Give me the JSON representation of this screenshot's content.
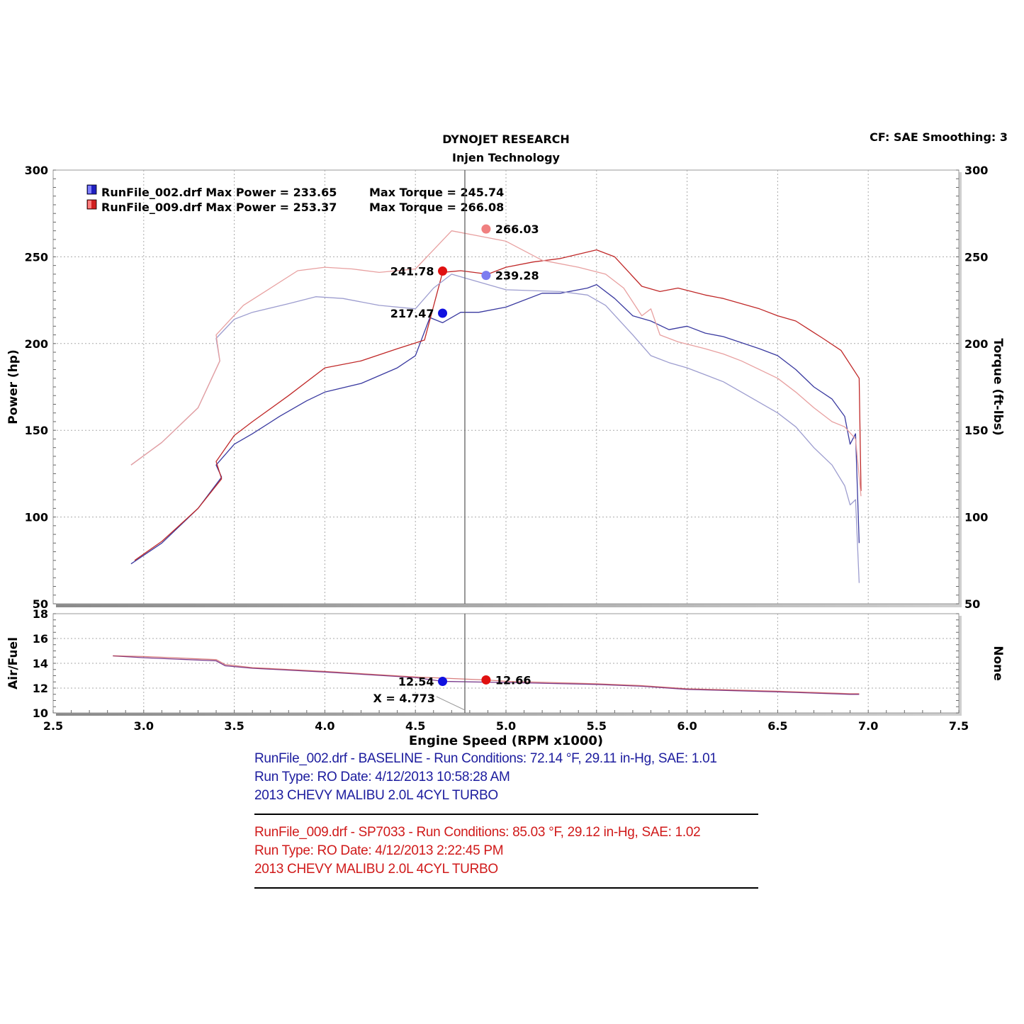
{
  "header": {
    "title": "DYNOJET RESEARCH",
    "subtitle": "Injen Technology",
    "settings": "CF: SAE  Smoothing: 3"
  },
  "colors": {
    "baseline_power": "#3a3aa0",
    "baseline_torque": "#9d9dcf",
    "baseline_marker": "#1010e0",
    "baseline_torque_marker": "#7d7df0",
    "sp7033_power": "#c02828",
    "sp7033_torque": "#e8a0a0",
    "sp7033_marker": "#e01010",
    "sp7033_torque_marker": "#f08080",
    "af_line": "#7a3a8c",
    "cursor": "#555555",
    "grid": "#aaaaaa"
  },
  "legend": [
    {
      "label": "RunFile_002.drf Max Power = 233.65",
      "torque": "Max Torque = 245.74",
      "color": "#2020c0"
    },
    {
      "label": "RunFile_009.drf Max Power = 253.37",
      "torque": "Max Torque = 266.08",
      "color": "#d02020"
    }
  ],
  "chart_data": [
    {
      "type": "line",
      "x_label": "Engine Speed (RPM x1000)",
      "y_label_left": "Power (hp)",
      "y_label_right": "Torque (ft-lbs)",
      "xlim": [
        2.5,
        7.5
      ],
      "ylim": [
        50,
        300
      ],
      "x_ticks": [
        "2.5",
        "3.0",
        "3.5",
        "4.0",
        "4.5",
        "5.0",
        "5.5",
        "6.0",
        "6.5",
        "7.0",
        "7.5"
      ],
      "y_ticks": [
        "50",
        "100",
        "150",
        "200",
        "250",
        "300"
      ],
      "grid": true,
      "cursor_x": 4.773,
      "series": [
        {
          "name": "RunFile_002.drf Power",
          "kind": "power",
          "run": "baseline",
          "points": [
            [
              2.93,
              73
            ],
            [
              3.1,
              85
            ],
            [
              3.3,
              105
            ],
            [
              3.43,
              123
            ],
            [
              3.4,
              130
            ],
            [
              3.5,
              142
            ],
            [
              3.6,
              148
            ],
            [
              3.75,
              158
            ],
            [
              3.9,
              167
            ],
            [
              4.0,
              172
            ],
            [
              4.2,
              177
            ],
            [
              4.4,
              186
            ],
            [
              4.5,
              193
            ],
            [
              4.58,
              215
            ],
            [
              4.65,
              212
            ],
            [
              4.75,
              218
            ],
            [
              4.85,
              218
            ],
            [
              5.0,
              221
            ],
            [
              5.2,
              229
            ],
            [
              5.3,
              229
            ],
            [
              5.45,
              232
            ],
            [
              5.5,
              234
            ],
            [
              5.6,
              226
            ],
            [
              5.7,
              216
            ],
            [
              5.8,
              213
            ],
            [
              5.9,
              208
            ],
            [
              6.0,
              210
            ],
            [
              6.1,
              206
            ],
            [
              6.2,
              204
            ],
            [
              6.4,
              197
            ],
            [
              6.5,
              193
            ],
            [
              6.6,
              185
            ],
            [
              6.7,
              175
            ],
            [
              6.8,
              168
            ],
            [
              6.87,
              158
            ],
            [
              6.9,
              142
            ],
            [
              6.93,
              148
            ],
            [
              6.95,
              85
            ]
          ]
        },
        {
          "name": "RunFile_009.drf Power",
          "kind": "power",
          "run": "sp7033",
          "points": [
            [
              2.95,
              75
            ],
            [
              3.1,
              86
            ],
            [
              3.3,
              105
            ],
            [
              3.43,
              122
            ],
            [
              3.4,
              132
            ],
            [
              3.5,
              147
            ],
            [
              3.6,
              155
            ],
            [
              3.8,
              170
            ],
            [
              4.0,
              186
            ],
            [
              4.2,
              190
            ],
            [
              4.4,
              197
            ],
            [
              4.55,
              202
            ],
            [
              4.65,
              241
            ],
            [
              4.75,
              242
            ],
            [
              4.9,
              240
            ],
            [
              5.0,
              244
            ],
            [
              5.15,
              247
            ],
            [
              5.3,
              249
            ],
            [
              5.5,
              254
            ],
            [
              5.6,
              250
            ],
            [
              5.75,
              233
            ],
            [
              5.85,
              230
            ],
            [
              5.95,
              232
            ],
            [
              6.1,
              228
            ],
            [
              6.2,
              226
            ],
            [
              6.4,
              220
            ],
            [
              6.5,
              216
            ],
            [
              6.6,
              213
            ],
            [
              6.75,
              203
            ],
            [
              6.85,
              196
            ],
            [
              6.95,
              180
            ],
            [
              6.96,
              115
            ]
          ]
        },
        {
          "name": "RunFile_002.drf Torque",
          "kind": "torque",
          "run": "baseline",
          "points": [
            [
              2.93,
              130
            ],
            [
              3.1,
              143
            ],
            [
              3.3,
              163
            ],
            [
              3.42,
              190
            ],
            [
              3.4,
              203
            ],
            [
              3.5,
              214
            ],
            [
              3.6,
              218
            ],
            [
              3.8,
              223
            ],
            [
              3.95,
              227
            ],
            [
              4.1,
              226
            ],
            [
              4.3,
              222
            ],
            [
              4.5,
              220
            ],
            [
              4.6,
              232
            ],
            [
              4.7,
              240
            ],
            [
              4.8,
              237
            ],
            [
              5.0,
              231
            ],
            [
              5.3,
              230
            ],
            [
              5.45,
              228
            ],
            [
              5.55,
              222
            ],
            [
              5.7,
              205
            ],
            [
              5.8,
              193
            ],
            [
              5.9,
              189
            ],
            [
              6.0,
              186
            ],
            [
              6.1,
              182
            ],
            [
              6.2,
              178
            ],
            [
              6.3,
              172
            ],
            [
              6.5,
              160
            ],
            [
              6.6,
              152
            ],
            [
              6.7,
              140
            ],
            [
              6.8,
              130
            ],
            [
              6.87,
              118
            ],
            [
              6.9,
              107
            ],
            [
              6.93,
              110
            ],
            [
              6.95,
              62
            ]
          ]
        },
        {
          "name": "RunFile_009.drf Torque",
          "kind": "torque",
          "run": "sp7033",
          "points": [
            [
              2.93,
              130
            ],
            [
              3.1,
              143
            ],
            [
              3.3,
              163
            ],
            [
              3.42,
              190
            ],
            [
              3.4,
              205
            ],
            [
              3.55,
              222
            ],
            [
              3.7,
              232
            ],
            [
              3.85,
              242
            ],
            [
              4.0,
              244
            ],
            [
              4.15,
              243
            ],
            [
              4.3,
              241
            ],
            [
              4.5,
              243
            ],
            [
              4.6,
              254
            ],
            [
              4.7,
              265
            ],
            [
              4.85,
              262
            ],
            [
              5.0,
              259
            ],
            [
              5.2,
              248
            ],
            [
              5.4,
              244
            ],
            [
              5.55,
              240
            ],
            [
              5.65,
              232
            ],
            [
              5.75,
              216
            ],
            [
              5.8,
              220
            ],
            [
              5.85,
              205
            ],
            [
              5.95,
              201
            ],
            [
              6.1,
              197
            ],
            [
              6.2,
              194
            ],
            [
              6.3,
              190
            ],
            [
              6.5,
              180
            ],
            [
              6.6,
              172
            ],
            [
              6.7,
              163
            ],
            [
              6.8,
              155
            ],
            [
              6.87,
              152
            ],
            [
              6.93,
              145
            ],
            [
              6.96,
              112
            ]
          ]
        }
      ],
      "markers": [
        {
          "x": 4.65,
          "y": 217.47,
          "label": "217.47",
          "run": "baseline",
          "kind": "power",
          "label_side": "left"
        },
        {
          "x": 4.65,
          "y": 241.78,
          "label": "241.78",
          "run": "sp7033",
          "kind": "power",
          "label_side": "left"
        },
        {
          "x": 4.89,
          "y": 239.28,
          "label": "239.28",
          "run": "baseline",
          "kind": "torque",
          "label_side": "right"
        },
        {
          "x": 4.89,
          "y": 266.03,
          "label": "266.03",
          "run": "sp7033",
          "kind": "torque",
          "label_side": "right"
        }
      ]
    },
    {
      "type": "line",
      "y_label_left": "Air/Fuel",
      "y_label_right": "None",
      "xlim": [
        2.5,
        7.5
      ],
      "ylim": [
        10,
        18
      ],
      "y_ticks": [
        "10",
        "12",
        "14",
        "16",
        "18"
      ],
      "grid": true,
      "cursor_label": "X = 4.773",
      "series": [
        {
          "name": "RunFile_002.drf Air/Fuel",
          "run": "baseline",
          "points": [
            [
              2.83,
              14.6
            ],
            [
              3.0,
              14.45
            ],
            [
              3.4,
              14.2
            ],
            [
              3.45,
              13.8
            ],
            [
              3.6,
              13.6
            ],
            [
              4.0,
              13.3
            ],
            [
              4.5,
              12.85
            ],
            [
              4.65,
              12.54
            ],
            [
              5.0,
              12.45
            ],
            [
              5.5,
              12.3
            ],
            [
              5.75,
              12.15
            ],
            [
              6.0,
              11.9
            ],
            [
              6.5,
              11.7
            ],
            [
              6.9,
              11.5
            ],
            [
              6.95,
              11.5
            ]
          ]
        },
        {
          "name": "RunFile_009.drf Air/Fuel",
          "run": "sp7033",
          "points": [
            [
              2.83,
              14.6
            ],
            [
              3.0,
              14.55
            ],
            [
              3.4,
              14.3
            ],
            [
              3.45,
              13.9
            ],
            [
              3.6,
              13.65
            ],
            [
              4.0,
              13.35
            ],
            [
              4.5,
              12.9
            ],
            [
              4.89,
              12.66
            ],
            [
              5.0,
              12.55
            ],
            [
              5.5,
              12.35
            ],
            [
              5.75,
              12.2
            ],
            [
              6.0,
              11.95
            ],
            [
              6.5,
              11.75
            ],
            [
              6.9,
              11.55
            ],
            [
              6.95,
              11.55
            ]
          ]
        }
      ],
      "markers": [
        {
          "x": 4.65,
          "y": 12.54,
          "label": "12.54",
          "run": "baseline",
          "label_side": "left"
        },
        {
          "x": 4.89,
          "y": 12.66,
          "label": "12.66",
          "run": "sp7033",
          "label_side": "right"
        }
      ]
    }
  ],
  "run_info": {
    "baseline": [
      "RunFile_002.drf - BASELINE  -  Run Conditions: 72.14 °F, 29.11 in-Hg, SAE: 1.01",
      "Run Type: RO  Date: 4/12/2013 10:58:28 AM",
      "2013 CHEVY MALIBU 2.0L 4CYL TURBO"
    ],
    "sp7033": [
      "RunFile_009.drf - SP7033  -  Run Conditions: 85.03 °F, 29.12 in-Hg, SAE: 1.02",
      "Run Type: RO  Date: 4/12/2013 2:22:45 PM",
      "2013 CHEVY MALIBU 2.0L 4CYL TURBO"
    ]
  }
}
